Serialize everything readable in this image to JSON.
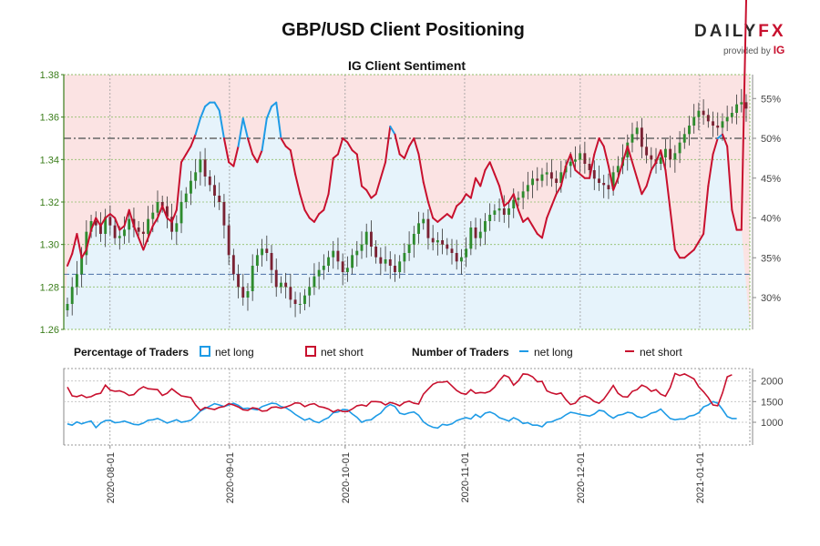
{
  "header": {
    "title": "GBP/USD Client Positioning",
    "logo_main": "DAILY",
    "logo_fx": "FX",
    "logo_provided": "provided by",
    "logo_ig": "IG"
  },
  "colors": {
    "long": "#1e9be6",
    "short": "#c8102e",
    "long_fill": "#e6f3fb",
    "short_fill": "#fbe3e3",
    "candle_up": "#2e8b2e",
    "candle_down": "#7a2233",
    "axis_left": "#3a7d1a"
  },
  "chart_data": [
    {
      "type": "candlestick+line",
      "title": "IG Client Sentiment",
      "left_axis": {
        "ticks": [
          "1.38",
          "1.36",
          "1.34",
          "1.32",
          "1.30",
          "1.28",
          "1.26"
        ],
        "range": [
          1.26,
          1.38
        ]
      },
      "right_axis": {
        "ticks": [
          "55%",
          "50%",
          "45%",
          "40%",
          "35%",
          "30%"
        ],
        "range": [
          26,
          58
        ]
      },
      "dashed_levels": [
        {
          "axis": "right",
          "value": 50,
          "color": "#666666"
        },
        {
          "axis": "left",
          "value": 1.286,
          "color": "#4a6fa5"
        }
      ],
      "x_dates": [
        "2020-08-01",
        "2020-09-01",
        "2020-10-01",
        "2020-11-01",
        "2020-12-01",
        "2021-01-01"
      ],
      "x_start": "2020-07-20",
      "x_end": "2021-01-14",
      "price_close": [
        1.272,
        1.28,
        1.286,
        1.295,
        1.306,
        1.311,
        1.309,
        1.305,
        1.313,
        1.309,
        1.303,
        1.304,
        1.307,
        1.312,
        1.308,
        1.306,
        1.305,
        1.312,
        1.315,
        1.32,
        1.318,
        1.313,
        1.306,
        1.31,
        1.32,
        1.324,
        1.33,
        1.334,
        1.34,
        1.332,
        1.328,
        1.323,
        1.32,
        1.309,
        1.295,
        1.286,
        1.28,
        1.275,
        1.278,
        1.29,
        1.295,
        1.298,
        1.296,
        1.288,
        1.28,
        1.282,
        1.28,
        1.274,
        1.272,
        1.272,
        1.276,
        1.28,
        1.285,
        1.288,
        1.29,
        1.294,
        1.297,
        1.292,
        1.287,
        1.289,
        1.295,
        1.297,
        1.3,
        1.306,
        1.299,
        1.294,
        1.291,
        1.293,
        1.29,
        1.287,
        1.292,
        1.296,
        1.3,
        1.305,
        1.31,
        1.312,
        1.303,
        1.301,
        1.302,
        1.3,
        1.298,
        1.296,
        1.292,
        1.294,
        1.298,
        1.308,
        1.303,
        1.306,
        1.311,
        1.314,
        1.316,
        1.317,
        1.314,
        1.317,
        1.321,
        1.322,
        1.325,
        1.328,
        1.331,
        1.33,
        1.333,
        1.334,
        1.331,
        1.329,
        1.334,
        1.337,
        1.339,
        1.34,
        1.343,
        1.338,
        1.335,
        1.331,
        1.329,
        1.328,
        1.326,
        1.334,
        1.337,
        1.341,
        1.348,
        1.352,
        1.355,
        1.346,
        1.342,
        1.34,
        1.338,
        1.341,
        1.345,
        1.34,
        1.343,
        1.348,
        1.352,
        1.356,
        1.36,
        1.363,
        1.361,
        1.358,
        1.356,
        1.355,
        1.358,
        1.36,
        1.362,
        1.366,
        1.367,
        1.364
      ],
      "net_long_pct": [
        34.0,
        35.5,
        38.0,
        35.0,
        36.0,
        38.5,
        40.0,
        39.0,
        40.0,
        40.5,
        40.0,
        38.5,
        39.0,
        41.0,
        39.0,
        37.5,
        36.0,
        37.5,
        39.0,
        40.0,
        41.5,
        40.0,
        39.5,
        41.0,
        47.0,
        48.0,
        49.0,
        50.5,
        52.5,
        54.0,
        54.5,
        54.5,
        53.5,
        50.0,
        47.0,
        46.5,
        49.0,
        52.5,
        50.0,
        48.0,
        47.0,
        48.5,
        52.5,
        54.0,
        54.5,
        50.0,
        49.0,
        48.5,
        45.5,
        43.0,
        41.0,
        40.0,
        39.5,
        40.5,
        41.0,
        43.0,
        47.5,
        48.0,
        50.0,
        49.5,
        48.5,
        48.0,
        44.0,
        43.5,
        42.5,
        43.0,
        45.0,
        47.0,
        51.5,
        50.5,
        48.0,
        47.5,
        49.0,
        50.0,
        48.0,
        44.5,
        42.0,
        40.0,
        39.5,
        40.0,
        40.5,
        40.0,
        41.5,
        42.0,
        43.0,
        42.5,
        45.0,
        44.0,
        46.0,
        47.0,
        45.5,
        44.0,
        41.5,
        42.0,
        43.0,
        41.0,
        39.5,
        40.0,
        39.0,
        38.0,
        37.5,
        40.0,
        41.5,
        43.0,
        44.0,
        46.5,
        48.0,
        46.0,
        45.5,
        45.0,
        45.0,
        48.0,
        50.0,
        49.0,
        46.5,
        43.5,
        45.0,
        47.0,
        49.0,
        47.0,
        45.0,
        43.0,
        44.0,
        46.0,
        47.0,
        48.5,
        46.0,
        41.0,
        36.0,
        35.0,
        35.0,
        35.5,
        36.0,
        37.0,
        38.0,
        44.0,
        48.0,
        50.0,
        50.5,
        49.0,
        41.0,
        38.5,
        38.5
      ],
      "legend_pct": {
        "group": "Percentage of Traders",
        "long": "net long",
        "short": "net short"
      },
      "legend_num": {
        "group": "Number of Traders",
        "long": "net long",
        "short": "net short"
      },
      "traders_axis": {
        "ticks": [
          "2000",
          "1500",
          "1000"
        ],
        "range": [
          450,
          2300
        ]
      },
      "traders_long": [
        960,
        930,
        1010,
        960,
        1000,
        1030,
        870,
        980,
        1040,
        1050,
        990,
        1000,
        1030,
        990,
        950,
        940,
        980,
        1050,
        1060,
        1090,
        1040,
        980,
        1020,
        1060,
        1000,
        1020,
        1050,
        1150,
        1270,
        1330,
        1390,
        1450,
        1420,
        1380,
        1420,
        1460,
        1410,
        1330,
        1340,
        1320,
        1300,
        1380,
        1420,
        1460,
        1450,
        1380,
        1350,
        1280,
        1190,
        1120,
        1050,
        1090,
        1020,
        990,
        1060,
        1110,
        1230,
        1250,
        1310,
        1300,
        1200,
        1120,
        1000,
        1050,
        1060,
        1150,
        1220,
        1360,
        1430,
        1380,
        1220,
        1190,
        1230,
        1250,
        1170,
        1010,
        930,
        880,
        860,
        950,
        930,
        960,
        1040,
        1080,
        1110,
        1080,
        1190,
        1120,
        1220,
        1250,
        1200,
        1110,
        1070,
        1030,
        1110,
        1060,
        970,
        990,
        930,
        930,
        890,
        1000,
        1010,
        1060,
        1100,
        1180,
        1240,
        1220,
        1190,
        1170,
        1150,
        1200,
        1290,
        1270,
        1170,
        1100,
        1170,
        1190,
        1240,
        1220,
        1140,
        1110,
        1150,
        1220,
        1250,
        1320,
        1200,
        1090,
        1060,
        1080,
        1080,
        1150,
        1170,
        1230,
        1370,
        1420,
        1500,
        1460,
        1310,
        1140,
        1090,
        1090
      ],
      "traders_short": [
        1850,
        1640,
        1620,
        1660,
        1600,
        1620,
        1680,
        1700,
        1900,
        1780,
        1750,
        1760,
        1720,
        1650,
        1670,
        1790,
        1860,
        1810,
        1800,
        1790,
        1650,
        1700,
        1810,
        1720,
        1640,
        1620,
        1600,
        1420,
        1290,
        1360,
        1330,
        1310,
        1360,
        1380,
        1450,
        1420,
        1370,
        1300,
        1290,
        1350,
        1330,
        1270,
        1280,
        1360,
        1370,
        1340,
        1370,
        1410,
        1470,
        1460,
        1380,
        1430,
        1450,
        1380,
        1360,
        1320,
        1250,
        1300,
        1260,
        1260,
        1320,
        1400,
        1420,
        1390,
        1500,
        1500,
        1490,
        1420,
        1480,
        1450,
        1400,
        1480,
        1510,
        1460,
        1440,
        1680,
        1800,
        1920,
        1970,
        1970,
        1990,
        1880,
        1770,
        1700,
        1680,
        1790,
        1700,
        1720,
        1710,
        1750,
        1850,
        2010,
        2140,
        2090,
        1900,
        2000,
        2170,
        2160,
        2100,
        1980,
        1990,
        1760,
        1710,
        1680,
        1710,
        1550,
        1430,
        1460,
        1600,
        1640,
        1590,
        1500,
        1460,
        1560,
        1720,
        1890,
        1700,
        1620,
        1610,
        1750,
        1790,
        1900,
        1850,
        1750,
        1790,
        1680,
        1630,
        1840,
        2180,
        2130,
        2170,
        2110,
        2050,
        1860,
        1740,
        1600,
        1420,
        1400,
        1710,
        2100,
        2150
      ]
    }
  ]
}
